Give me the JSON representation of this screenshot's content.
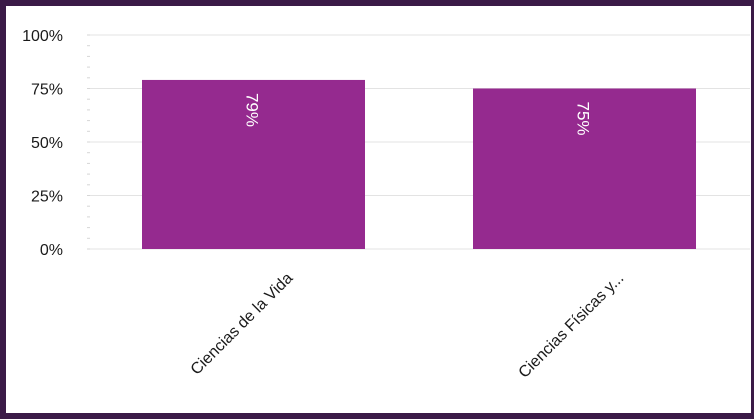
{
  "chart_data": {
    "type": "bar",
    "title": "",
    "xlabel": "",
    "ylabel": "",
    "categories": [
      "Ciencias de la Vida",
      "Ciencias Físicas y..."
    ],
    "values": [
      79,
      75
    ],
    "data_labels": [
      "79%",
      "75%"
    ],
    "ylim": [
      0,
      100
    ],
    "y_ticks": [
      "0%",
      "25%",
      "50%",
      "75%",
      "100%"
    ],
    "y_tick_values": [
      0,
      25,
      50,
      75,
      100
    ],
    "bar_color": "#952a8f",
    "grid": true,
    "legend": "none"
  }
}
